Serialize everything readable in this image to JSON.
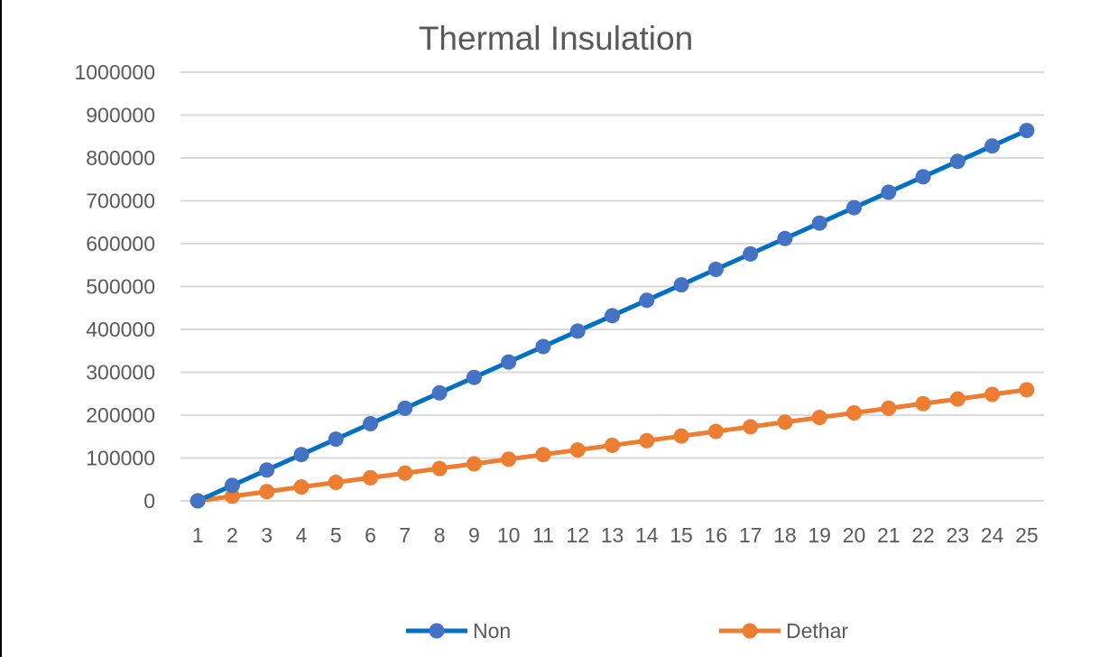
{
  "chart_data": {
    "type": "line",
    "title": "Thermal Insulation",
    "xlabel": "",
    "ylabel": "",
    "categories": [
      "1",
      "2",
      "3",
      "4",
      "5",
      "6",
      "7",
      "8",
      "9",
      "10",
      "11",
      "12",
      "13",
      "14",
      "15",
      "16",
      "17",
      "18",
      "19",
      "20",
      "21",
      "22",
      "23",
      "24",
      "25"
    ],
    "ylim": [
      0,
      1000000
    ],
    "yticks": [
      "0",
      "100000",
      "200000",
      "300000",
      "400000",
      "500000",
      "600000",
      "700000",
      "800000",
      "900000",
      "1000000"
    ],
    "grid": true,
    "legend_position": "bottom",
    "series": [
      {
        "name": "Non",
        "line_color": "#0070C0",
        "marker_color": "#4472C4",
        "values": [
          0,
          36000,
          72000,
          108000,
          144000,
          180000,
          216000,
          252000,
          288000,
          324000,
          360000,
          396000,
          432000,
          468000,
          504000,
          540000,
          576000,
          612000,
          648000,
          684000,
          720000,
          756000,
          792000,
          828000,
          864000
        ]
      },
      {
        "name": "Dethar",
        "line_color": "#ED7D31",
        "marker_color": "#ED7D31",
        "values": [
          0,
          10800,
          21600,
          32400,
          43200,
          54000,
          64800,
          75600,
          86400,
          97200,
          108000,
          118800,
          129600,
          140400,
          151200,
          162000,
          172800,
          183600,
          194400,
          205200,
          216000,
          226800,
          237600,
          248400,
          259200
        ]
      }
    ]
  }
}
